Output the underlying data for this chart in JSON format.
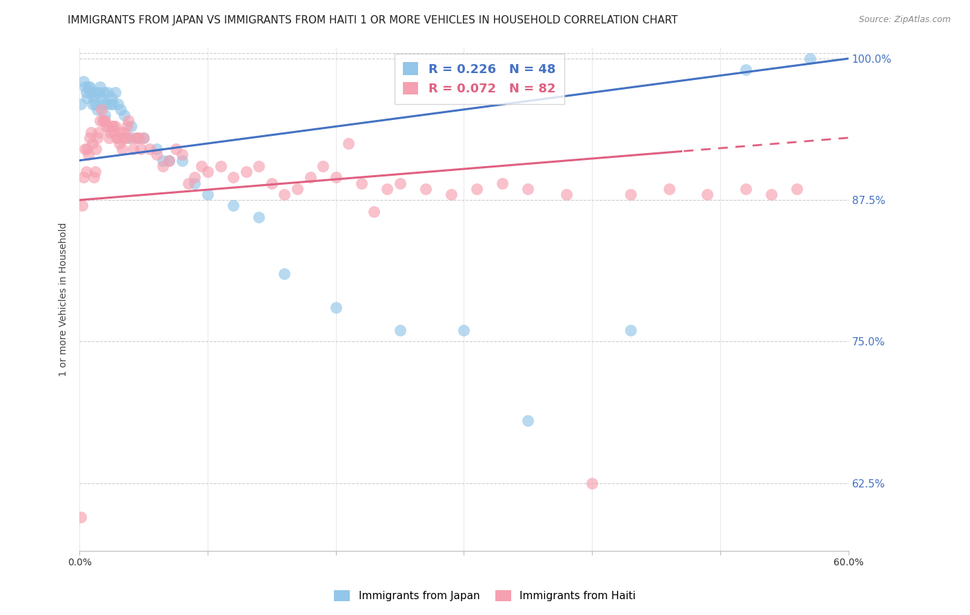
{
  "title": "IMMIGRANTS FROM JAPAN VS IMMIGRANTS FROM HAITI 1 OR MORE VEHICLES IN HOUSEHOLD CORRELATION CHART",
  "source": "Source: ZipAtlas.com",
  "ylabel": "1 or more Vehicles in Household",
  "xmin": 0.0,
  "xmax": 0.6,
  "ymin": 0.565,
  "ymax": 1.01,
  "yticks": [
    0.625,
    0.75,
    0.875,
    1.0
  ],
  "ytick_labels": [
    "62.5%",
    "75.0%",
    "87.5%",
    "100.0%"
  ],
  "xticks": [
    0.0,
    0.1,
    0.2,
    0.3,
    0.4,
    0.5,
    0.6
  ],
  "xtick_labels": [
    "0.0%",
    "",
    "",
    "",
    "",
    "",
    "60.0%"
  ],
  "japan_R": 0.226,
  "japan_N": 48,
  "haiti_R": 0.072,
  "haiti_N": 82,
  "japan_color": "#93C6E8",
  "haiti_color": "#F5A0B0",
  "japan_line_color": "#4472C4",
  "haiti_line_color": "#E06080",
  "background_color": "#FFFFFF",
  "japan_x": [
    0.001,
    0.003,
    0.004,
    0.005,
    0.006,
    0.007,
    0.008,
    0.009,
    0.01,
    0.011,
    0.012,
    0.013,
    0.014,
    0.015,
    0.016,
    0.017,
    0.018,
    0.019,
    0.02,
    0.021,
    0.022,
    0.024,
    0.025,
    0.026,
    0.028,
    0.03,
    0.032,
    0.035,
    0.038,
    0.04,
    0.045,
    0.05,
    0.06,
    0.065,
    0.07,
    0.08,
    0.09,
    0.1,
    0.12,
    0.14,
    0.16,
    0.2,
    0.25,
    0.3,
    0.35,
    0.43,
    0.52,
    0.57
  ],
  "japan_y": [
    0.96,
    0.98,
    0.975,
    0.97,
    0.965,
    0.975,
    0.975,
    0.97,
    0.96,
    0.965,
    0.96,
    0.97,
    0.955,
    0.97,
    0.975,
    0.965,
    0.96,
    0.97,
    0.95,
    0.96,
    0.97,
    0.96,
    0.965,
    0.96,
    0.97,
    0.96,
    0.955,
    0.95,
    0.93,
    0.94,
    0.93,
    0.93,
    0.92,
    0.91,
    0.91,
    0.91,
    0.89,
    0.88,
    0.87,
    0.86,
    0.81,
    0.78,
    0.76,
    0.76,
    0.68,
    0.76,
    0.99,
    1.0
  ],
  "haiti_x": [
    0.001,
    0.002,
    0.003,
    0.004,
    0.005,
    0.006,
    0.007,
    0.008,
    0.009,
    0.01,
    0.011,
    0.012,
    0.013,
    0.014,
    0.015,
    0.016,
    0.017,
    0.018,
    0.019,
    0.02,
    0.021,
    0.022,
    0.023,
    0.024,
    0.025,
    0.026,
    0.027,
    0.028,
    0.029,
    0.03,
    0.031,
    0.032,
    0.033,
    0.034,
    0.035,
    0.036,
    0.037,
    0.038,
    0.04,
    0.042,
    0.044,
    0.046,
    0.048,
    0.05,
    0.055,
    0.06,
    0.065,
    0.07,
    0.075,
    0.08,
    0.085,
    0.09,
    0.095,
    0.1,
    0.11,
    0.12,
    0.13,
    0.14,
    0.15,
    0.16,
    0.17,
    0.18,
    0.19,
    0.2,
    0.21,
    0.22,
    0.23,
    0.24,
    0.25,
    0.27,
    0.29,
    0.31,
    0.33,
    0.35,
    0.38,
    0.4,
    0.43,
    0.46,
    0.49,
    0.52,
    0.54,
    0.56
  ],
  "haiti_y": [
    0.595,
    0.87,
    0.895,
    0.92,
    0.9,
    0.92,
    0.915,
    0.93,
    0.935,
    0.925,
    0.895,
    0.9,
    0.92,
    0.93,
    0.935,
    0.945,
    0.955,
    0.945,
    0.945,
    0.945,
    0.94,
    0.94,
    0.93,
    0.935,
    0.94,
    0.94,
    0.935,
    0.94,
    0.93,
    0.93,
    0.925,
    0.935,
    0.92,
    0.93,
    0.935,
    0.93,
    0.94,
    0.945,
    0.93,
    0.92,
    0.93,
    0.93,
    0.92,
    0.93,
    0.92,
    0.915,
    0.905,
    0.91,
    0.92,
    0.915,
    0.89,
    0.895,
    0.905,
    0.9,
    0.905,
    0.895,
    0.9,
    0.905,
    0.89,
    0.88,
    0.885,
    0.895,
    0.905,
    0.895,
    0.925,
    0.89,
    0.865,
    0.885,
    0.89,
    0.885,
    0.88,
    0.885,
    0.89,
    0.885,
    0.88,
    0.625,
    0.88,
    0.885,
    0.88,
    0.885,
    0.88,
    0.885
  ],
  "title_fontsize": 11,
  "axis_label_fontsize": 10,
  "tick_fontsize": 10,
  "legend_fontsize": 13
}
